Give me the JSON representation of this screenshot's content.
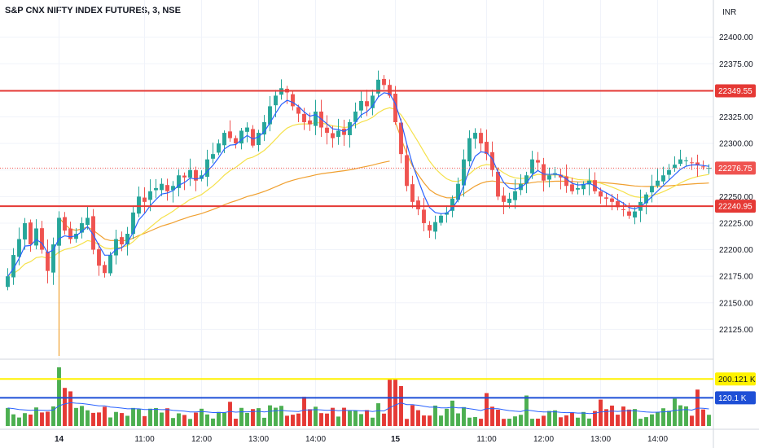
{
  "header": {
    "symbol_title": "S&P CNX NIFTY INDEX FUTURES, 3, NSE",
    "currency": "INR"
  },
  "colors": {
    "up": "#26a69a",
    "down": "#ef5350",
    "level_line": "#e53935",
    "fast_ma": "#2962ff",
    "slow_ma": "#f5e14a",
    "vwap": "#f0a030",
    "volume_high_line": "#fff200",
    "volume_avg_line": "#1e4fd6",
    "vol_up": "#4caf50",
    "vol_down": "#e53935"
  },
  "price_axis": {
    "min": 22100,
    "max": 22412,
    "ticks": [
      "22400.00",
      "22375.00",
      "22350.00",
      "22325.00",
      "22300.00",
      "22275.00",
      "22250.00",
      "22225.00",
      "22200.00",
      "22175.00",
      "22150.00",
      "22125.00"
    ]
  },
  "level_tags": {
    "resistance": {
      "value": 22349.55,
      "label": "22349.55"
    },
    "support": {
      "value": 22240.95,
      "label": "22240.95"
    },
    "last_price": {
      "value": 22276.75,
      "label": "22276.75"
    }
  },
  "volume_tags": {
    "high": {
      "value": 200.121,
      "label": "200.121 K"
    },
    "avg": {
      "value": 120.1,
      "label": "120.1 K"
    }
  },
  "time_axis": {
    "labels": [
      {
        "text": "14",
        "bold": true,
        "index": 9
      },
      {
        "text": "11:00",
        "bold": false,
        "index": 24
      },
      {
        "text": "12:00",
        "bold": false,
        "index": 34
      },
      {
        "text": "13:00",
        "bold": false,
        "index": 44
      },
      {
        "text": "14:00",
        "bold": false,
        "index": 54
      },
      {
        "text": "15",
        "bold": true,
        "index": 68
      },
      {
        "text": "11:00",
        "bold": false,
        "index": 84
      },
      {
        "text": "12:00",
        "bold": false,
        "index": 94
      },
      {
        "text": "13:00",
        "bold": false,
        "index": 104
      },
      {
        "text": "14:00",
        "bold": false,
        "index": 114
      }
    ]
  },
  "chart_data": {
    "type": "candlestick",
    "close_path": [
      22175,
      22195,
      22210,
      22225,
      22205,
      22220,
      22200,
      22180,
      22205,
      22230,
      22218,
      22210,
      22215,
      22225,
      22230,
      22200,
      22185,
      22178,
      22195,
      22210,
      22205,
      22215,
      22235,
      22250,
      22245,
      22255,
      22258,
      22262,
      22255,
      22260,
      22270,
      22268,
      22275,
      22265,
      22270,
      22285,
      22290,
      22300,
      22310,
      22305,
      22300,
      22312,
      22315,
      22298,
      22310,
      22320,
      22335,
      22345,
      22352,
      22348,
      22335,
      22328,
      22320,
      22318,
      22330,
      22315,
      22310,
      22305,
      22312,
      22308,
      22320,
      22330,
      22340,
      22335,
      22345,
      22360,
      22355,
      22345,
      22320,
      22290,
      22260,
      22245,
      22238,
      22225,
      22218,
      22226,
      22232,
      22235,
      22248,
      22262,
      22285,
      22305,
      22310,
      22300,
      22290,
      22275,
      22250,
      22245,
      22248,
      22255,
      22262,
      22270,
      22285,
      22282,
      22265,
      22270,
      22272,
      22268,
      22260,
      22255,
      22258,
      22262,
      22265,
      22255,
      22250,
      22248,
      22245,
      22240,
      22238,
      22232,
      22236,
      22245,
      22252,
      22260,
      22265,
      22270,
      22275,
      22280,
      22285,
      22284,
      22282,
      22280,
      22278,
      22277
    ],
    "series": [
      {
        "name": "",
        "kind": "fast_ma"
      },
      {
        "name": "",
        "kind": "slow_ma"
      },
      {
        "name": "",
        "kind": "vwap"
      }
    ],
    "volume_max_k": 260
  }
}
